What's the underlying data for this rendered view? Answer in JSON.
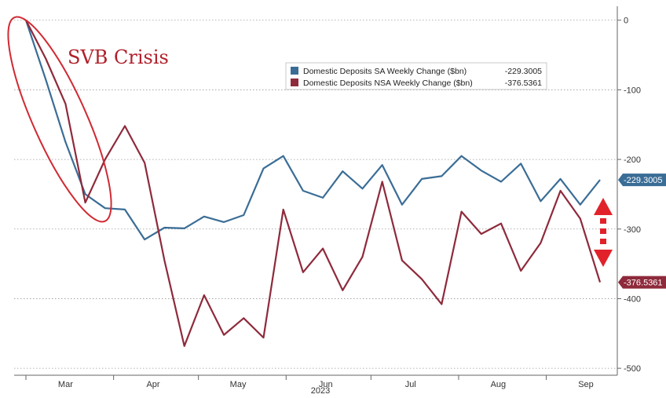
{
  "chart_data": {
    "type": "line",
    "x_dates": [
      "2023-03-01",
      "2023-03-08",
      "2023-03-15",
      "2023-03-22",
      "2023-03-29",
      "2023-04-05",
      "2023-04-12",
      "2023-04-19",
      "2023-04-26",
      "2023-05-03",
      "2023-05-10",
      "2023-05-17",
      "2023-05-24",
      "2023-05-31",
      "2023-06-07",
      "2023-06-14",
      "2023-06-21",
      "2023-06-28",
      "2023-07-05",
      "2023-07-12",
      "2023-07-19",
      "2023-07-26",
      "2023-08-02",
      "2023-08-09",
      "2023-08-16",
      "2023-08-23",
      "2023-08-30",
      "2023-09-06",
      "2023-09-13",
      "2023-09-20"
    ],
    "series": [
      {
        "name": "Domestic Deposits SA Weekly Change ($bn)",
        "last_value": "-229.3005",
        "color": "#3a6d96",
        "values": [
          0,
          -85,
          -175,
          -250,
          -270,
          -272,
          -315,
          -298,
          -299,
          -282,
          -290,
          -280,
          -213,
          -195,
          -245,
          -255,
          -217,
          -242,
          -208,
          -265,
          -228,
          -224,
          -195,
          -216,
          -232,
          -206,
          -260,
          -228,
          -265,
          -229.3
        ]
      },
      {
        "name": "Domestic Deposits NSA Weekly Change ($bn)",
        "last_value": "-376.5361",
        "color": "#8e2a3b",
        "values": [
          0,
          -55,
          -120,
          -262,
          -200,
          -152,
          -205,
          -345,
          -468,
          -395,
          -452,
          -428,
          -456,
          -272,
          -362,
          -328,
          -388,
          -340,
          -232,
          -345,
          -372,
          -408,
          -275,
          -307,
          -292,
          -360,
          -320,
          -245,
          -285,
          -376.5
        ]
      }
    ],
    "x_tick_labels": [
      "Mar",
      "Apr",
      "May",
      "Jun",
      "Jul",
      "Aug",
      "Sep"
    ],
    "x_tick_dates": [
      "2023-03-15",
      "2023-04-15",
      "2023-05-15",
      "2023-06-15",
      "2023-07-15",
      "2023-08-15",
      "2023-09-15"
    ],
    "year_label": "2023",
    "y_ticks": [
      0,
      -100,
      -200,
      -300,
      -400,
      -500
    ],
    "ylim": [
      -510,
      20
    ],
    "title": "",
    "annotation": "SVB Crisis",
    "legend_position": "top-center",
    "grid": "horizontal-dotted",
    "y_axis_side": "right"
  },
  "colors": {
    "annotation": "#b0202a",
    "arrow": "#e1222b"
  }
}
